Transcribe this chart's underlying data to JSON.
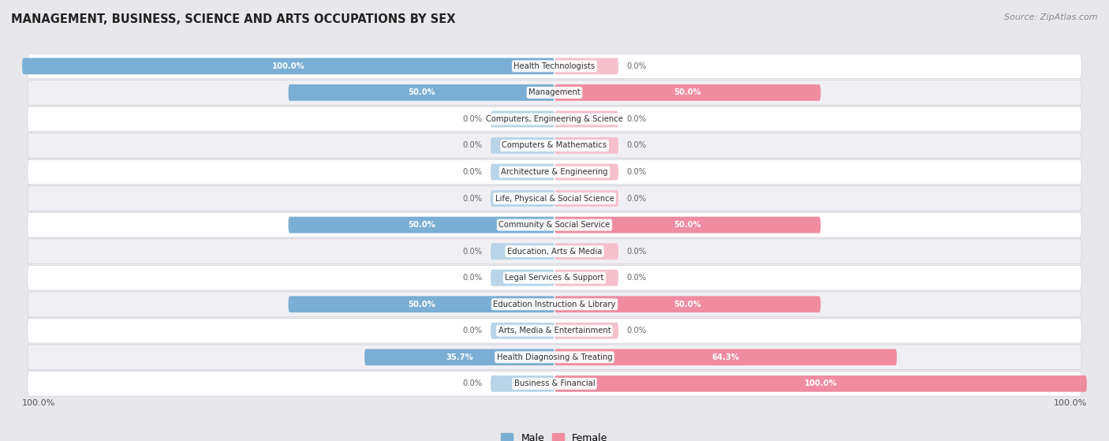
{
  "title": "MANAGEMENT, BUSINESS, SCIENCE AND ARTS OCCUPATIONS BY SEX",
  "source": "Source: ZipAtlas.com",
  "categories": [
    "Health Technologists",
    "Management",
    "Computers, Engineering & Science",
    "Computers & Mathematics",
    "Architecture & Engineering",
    "Life, Physical & Social Science",
    "Community & Social Service",
    "Education, Arts & Media",
    "Legal Services & Support",
    "Education Instruction & Library",
    "Arts, Media & Entertainment",
    "Health Diagnosing & Treating",
    "Business & Financial"
  ],
  "male_values": [
    100.0,
    50.0,
    0.0,
    0.0,
    0.0,
    0.0,
    50.0,
    0.0,
    0.0,
    50.0,
    0.0,
    35.7,
    0.0
  ],
  "female_values": [
    0.0,
    50.0,
    0.0,
    0.0,
    0.0,
    0.0,
    50.0,
    0.0,
    0.0,
    50.0,
    0.0,
    64.3,
    100.0
  ],
  "male_color": "#7aaed4",
  "female_color": "#f08ca0",
  "male_color_light": "#b8d4e8",
  "female_color_light": "#f5c0cc",
  "bg_color": "#e8e8ec",
  "row_even_color": "#ffffff",
  "row_odd_color": "#f0f0f4",
  "row_border_color": "#d0d0d8",
  "legend_male": "Male",
  "legend_female": "Female",
  "label_inside_color": "#ffffff",
  "label_outside_color": "#666666",
  "stub_size": 12.0
}
